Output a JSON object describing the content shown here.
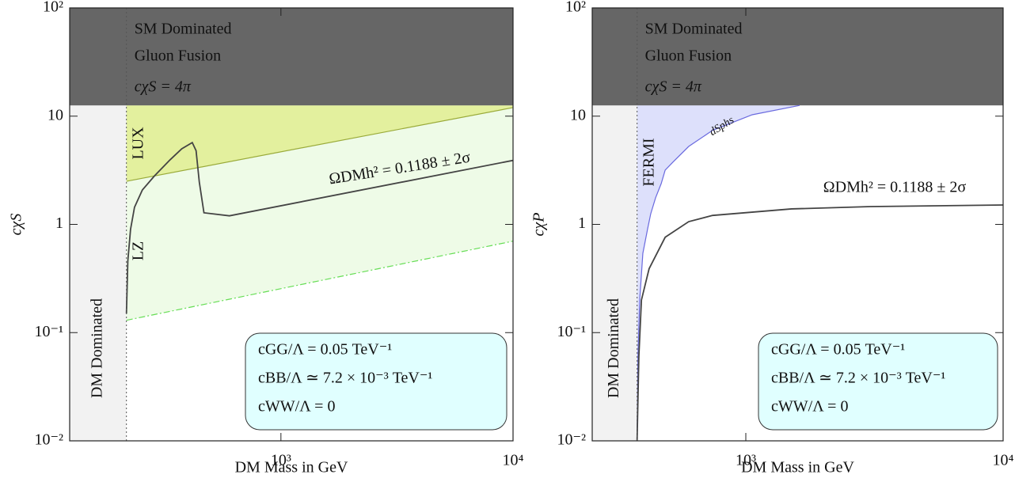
{
  "chart_data": [
    {
      "type": "line",
      "xscale": "log",
      "yscale": "log",
      "xlabel": "DM Mass in GeV",
      "ylabel": "cχS",
      "xlim": [
        123,
        10000
      ],
      "ylim": [
        0.01,
        100
      ],
      "xticks": [
        {
          "value": 1000,
          "label": "10³"
        },
        {
          "value": 10000,
          "label": "10⁴"
        }
      ],
      "yticks": [
        {
          "value": 0.01,
          "label": "10⁻²"
        },
        {
          "value": 0.1,
          "label": "10⁻¹"
        },
        1,
        10,
        {
          "value": 100,
          "label": "10²"
        }
      ],
      "sm_band": {
        "from": 12.57,
        "color": "#666666",
        "labels": [
          "SM Dominated",
          "Gluon Fusion"
        ],
        "limit_label": "cχS = 4π",
        "limit_color": "#9a9a9a"
      },
      "dm_band": {
        "to": 216,
        "color": "#f2f2f2",
        "label": "DM Dominated",
        "label_color": "#a8a8a8"
      },
      "areas": [
        {
          "name": "LZ",
          "color": "#eefbe7",
          "edge": "#66dd55",
          "style": "dashdot",
          "label_color": "#66dd55",
          "x": [
            216,
            10000
          ],
          "lower": [
            0.13,
            0.7
          ]
        },
        {
          "name": "LUX",
          "color": "#e3f09e",
          "edge": "#9aab3a",
          "style": "solid",
          "label_color": "#a8b040",
          "x": [
            216,
            10000
          ],
          "lower": [
            2.5,
            12
          ]
        }
      ],
      "series": [
        {
          "name": "ΩDMh² = 0.1188 ± 2σ",
          "color": "#444444",
          "x": [
            216,
            219,
            225,
            234,
            253,
            285,
            333,
            374,
            415,
            431,
            445,
            466,
            600,
            10000
          ],
          "values": [
            0.15,
            0.46,
            0.9,
            1.44,
            2.08,
            2.8,
            3.95,
            5.0,
            5.7,
            4.8,
            2.46,
            1.28,
            1.2,
            3.9
          ]
        }
      ],
      "notes": [
        "cGG/Λ = 0.05 TeV⁻¹",
        "cBB/Λ ≃ 7.2 × 10⁻³ TeV⁻¹",
        "cWW/Λ = 0"
      ],
      "notes_color": "#e0ffff"
    },
    {
      "type": "line",
      "xscale": "log",
      "yscale": "log",
      "xlabel": "DM Mass in GeV",
      "ylabel": "cχP",
      "xlim": [
        253,
        10000
      ],
      "ylim": [
        0.01,
        100
      ],
      "xticks": [
        {
          "value": 1000,
          "label": "10³"
        },
        {
          "value": 10000,
          "label": "10⁴"
        }
      ],
      "yticks": [
        {
          "value": 0.01,
          "label": "10⁻²"
        },
        {
          "value": 0.1,
          "label": "10⁻¹"
        },
        1,
        10,
        {
          "value": 100,
          "label": "10²"
        }
      ],
      "sm_band": {
        "from": 12.57,
        "color": "#666666",
        "labels": [
          "SM Dominated",
          "Gluon Fusion"
        ],
        "limit_label": "cχS = 4π",
        "limit_color": "#9a9a9a"
      },
      "dm_band": {
        "to": 378,
        "color": "#f2f2f2",
        "label": "DM Dominated",
        "label_color": "#a8a8a8"
      },
      "areas": [
        {
          "name": "FERMI",
          "sublabel": "dSphs",
          "color": "#dde0fb",
          "edge": "#6a6adf",
          "style": "solid",
          "label_color": "#2222cc",
          "x": [
            378,
            381,
            387,
            398,
            415,
            427,
            446,
            469,
            486,
            521,
            600,
            743,
            1059,
            1619
          ],
          "lower": [
            0.01,
            0.06,
            0.2,
            0.54,
            0.9,
            1.25,
            1.76,
            2.38,
            3.17,
            3.76,
            5.25,
            7.4,
            10.3,
            12.57
          ]
        }
      ],
      "series": [
        {
          "name": "ΩDMh² = 0.1188 ± 2σ",
          "color": "#444444",
          "x": [
            378,
            384,
            393,
            421,
            486,
            600,
            743,
            1506,
            3060,
            10000
          ],
          "values": [
            0.01,
            0.06,
            0.2,
            0.39,
            0.76,
            1.06,
            1.21,
            1.39,
            1.46,
            1.51
          ]
        }
      ],
      "notes": [
        "cGG/Λ = 0.05 TeV⁻¹",
        "cBB/Λ ≃ 7.2 × 10⁻³ TeV⁻¹",
        "cWW/Λ = 0"
      ],
      "notes_color": "#e0ffff"
    }
  ]
}
